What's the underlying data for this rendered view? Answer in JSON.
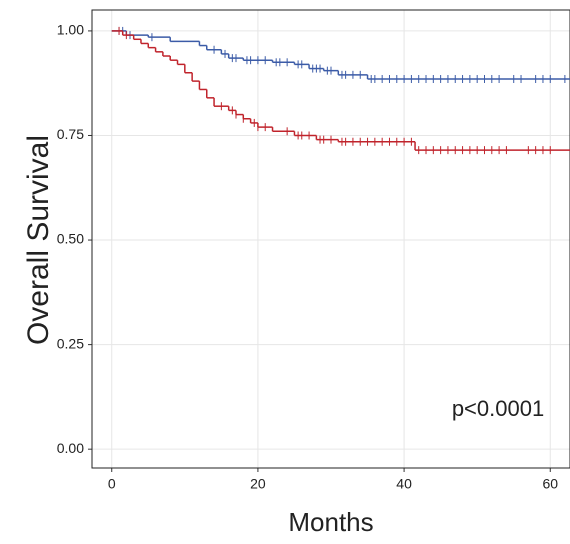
{
  "chart_data": {
    "type": "step",
    "xlabel": "Months",
    "ylabel": "Overall Survival",
    "annotation": "p<0.0001",
    "xlim": [
      -2.7,
      62.7
    ],
    "ylim": [
      -0.045,
      1.05
    ],
    "xticks": [
      0,
      20,
      40,
      60
    ],
    "yticks": [
      {
        "value": 0,
        "label": "0.00"
      },
      {
        "value": 0.25,
        "label": "0.25"
      },
      {
        "value": 0.5,
        "label": "0.50"
      },
      {
        "value": 0.75,
        "label": "0.75"
      },
      {
        "value": 1,
        "label": "1.00"
      }
    ],
    "grid": true,
    "series": [
      {
        "color": "#3b5ba7",
        "times": [
          0,
          2,
          5,
          8,
          12,
          13,
          15,
          16,
          18,
          22,
          25,
          27,
          29,
          31,
          35
        ],
        "survival": [
          1,
          0.99,
          0.985,
          0.975,
          0.965,
          0.955,
          0.945,
          0.935,
          0.93,
          0.925,
          0.92,
          0.91,
          0.905,
          0.895,
          0.885
        ],
        "censor_times": [
          1,
          1.5,
          2.5,
          5.5,
          14,
          15.5,
          16.5,
          17,
          18.5,
          19,
          20,
          21,
          22.5,
          23,
          24,
          25.5,
          26,
          27.5,
          28,
          28.5,
          29.5,
          30,
          31.5,
          32,
          33,
          34,
          35.5,
          36,
          37,
          38,
          39,
          40,
          41,
          42,
          43,
          44,
          45,
          46,
          47,
          48,
          49,
          50,
          51,
          52,
          53,
          55,
          56,
          58,
          59,
          60,
          62
        ]
      },
      {
        "color": "#c0232b",
        "times": [
          0,
          1.5,
          3,
          4,
          5,
          6,
          7,
          8,
          9,
          10,
          11,
          12,
          13,
          14,
          16,
          17,
          18,
          19,
          20,
          22,
          25,
          28,
          31,
          41.5
        ],
        "survival": [
          1,
          0.99,
          0.98,
          0.97,
          0.96,
          0.95,
          0.94,
          0.93,
          0.92,
          0.9,
          0.88,
          0.86,
          0.84,
          0.82,
          0.81,
          0.8,
          0.79,
          0.78,
          0.77,
          0.76,
          0.75,
          0.74,
          0.735,
          0.715
        ],
        "censor_times": [
          1,
          2,
          15,
          16.5,
          17,
          18,
          19.5,
          20,
          21,
          24,
          25.5,
          26,
          27,
          28.5,
          29,
          30,
          31.5,
          32,
          33,
          34,
          35,
          36,
          37,
          38,
          39,
          40,
          41,
          42,
          43,
          44,
          45,
          46,
          47,
          48,
          49,
          50,
          51,
          52,
          53,
          54,
          57,
          58,
          59,
          60
        ]
      }
    ]
  }
}
